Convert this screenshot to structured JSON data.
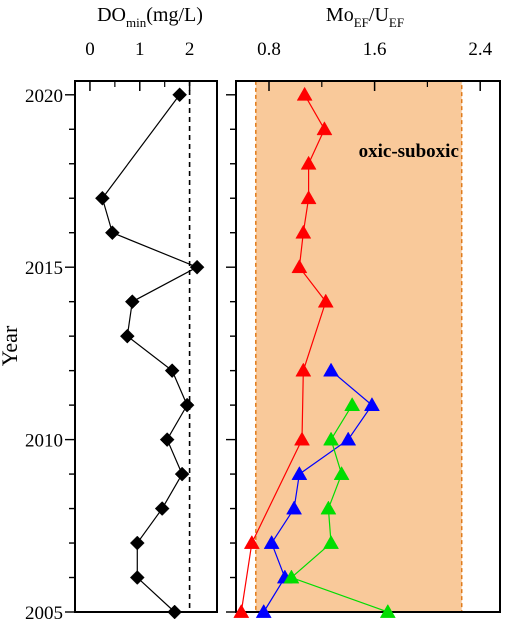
{
  "chart_data": [
    {
      "panel": "left",
      "type": "line",
      "title_main": "DO",
      "title_sub": "min",
      "title_rest": "(mg/L)",
      "ylabel": "Year",
      "xlim": [
        -0.3,
        2.55
      ],
      "ylim": [
        2005,
        2020.4
      ],
      "x_ticks": [
        "0",
        "1",
        "2"
      ],
      "x_tick_values": [
        0,
        1,
        2
      ],
      "x_minor_ticks": [
        0.5,
        1.5
      ],
      "y_ticks": [
        "2005",
        "2010",
        "2015",
        "2020"
      ],
      "y_tick_values": [
        2005,
        2010,
        2015,
        2020
      ],
      "reference_line": {
        "x": 2.0,
        "style": "dashed"
      },
      "series": [
        {
          "marker": "diamond",
          "color": "#000000",
          "points": [
            {
              "year": 2020.0,
              "x": 1.8
            },
            {
              "year": 2017.0,
              "x": 0.25
            },
            {
              "year": 2016.0,
              "x": 0.45
            },
            {
              "year": 2015.0,
              "x": 2.15
            },
            {
              "year": 2014.0,
              "x": 0.85
            },
            {
              "year": 2013.0,
              "x": 0.75
            },
            {
              "year": 2012.0,
              "x": 1.65
            },
            {
              "year": 2011.0,
              "x": 1.95
            },
            {
              "year": 2010.0,
              "x": 1.55
            },
            {
              "year": 2009.0,
              "x": 1.85
            },
            {
              "year": 2008.0,
              "x": 1.45
            },
            {
              "year": 2007.0,
              "x": 0.95
            },
            {
              "year": 2006.0,
              "x": 0.95
            },
            {
              "year": 2005.0,
              "x": 1.7
            }
          ]
        }
      ]
    },
    {
      "panel": "right",
      "type": "line",
      "title_a": "Mo",
      "title_a_sub": "EF",
      "title_b": "/U",
      "title_b_sub": "EF",
      "xlim": [
        0.55,
        2.55
      ],
      "ylim": [
        2005,
        2020.4
      ],
      "x_ticks": [
        "0.8",
        "1.6",
        "2.4"
      ],
      "x_tick_values": [
        0.8,
        1.6,
        2.4
      ],
      "x_minor_ticks": [
        1.2,
        2.0
      ],
      "band": {
        "x0": 0.7,
        "x1": 2.26,
        "label": "oxic-suboxic",
        "fill": "#f9c99a",
        "edge": "#e07b1a"
      },
      "series": [
        {
          "color": "#ff0000",
          "marker": "triangle",
          "points": [
            {
              "year": 2020.0,
              "x": 1.07
            },
            {
              "year": 2019.0,
              "x": 1.22
            },
            {
              "year": 2018.0,
              "x": 1.1
            },
            {
              "year": 2017.0,
              "x": 1.1
            },
            {
              "year": 2016.0,
              "x": 1.06
            },
            {
              "year": 2015.0,
              "x": 1.03
            },
            {
              "year": 2014.0,
              "x": 1.23
            },
            {
              "year": 2012.0,
              "x": 1.06
            },
            {
              "year": 2010.0,
              "x": 1.05
            },
            {
              "year": 2007.0,
              "x": 0.67
            },
            {
              "year": 2005.0,
              "x": 0.59
            }
          ]
        },
        {
          "color": "#0000ff",
          "marker": "triangle",
          "points": [
            {
              "year": 2012.0,
              "x": 1.27
            },
            {
              "year": 2011.0,
              "x": 1.58
            },
            {
              "year": 2010.0,
              "x": 1.4
            },
            {
              "year": 2009.0,
              "x": 1.03
            },
            {
              "year": 2008.0,
              "x": 0.99
            },
            {
              "year": 2007.0,
              "x": 0.82
            },
            {
              "year": 2006.0,
              "x": 0.92
            },
            {
              "year": 2005.0,
              "x": 0.76
            }
          ]
        },
        {
          "color": "#00dd00",
          "marker": "triangle",
          "points": [
            {
              "year": 2011.0,
              "x": 1.43
            },
            {
              "year": 2010.0,
              "x": 1.27
            },
            {
              "year": 2009.0,
              "x": 1.35
            },
            {
              "year": 2008.0,
              "x": 1.25
            },
            {
              "year": 2007.0,
              "x": 1.27
            },
            {
              "year": 2006.0,
              "x": 0.97
            },
            {
              "year": 2005.0,
              "x": 1.7
            }
          ]
        }
      ]
    }
  ]
}
